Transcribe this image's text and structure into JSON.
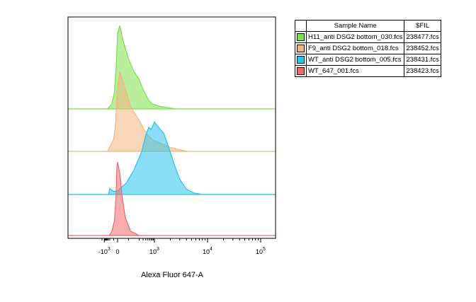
{
  "chart_data": {
    "type": "area",
    "xlabel": "Alexa Fluor 647-A",
    "x_scale": "biexponential",
    "x_ticks": [
      {
        "value": -1000,
        "base": "-10",
        "exp": "3"
      },
      {
        "value": 0,
        "base": "0",
        "exp": ""
      },
      {
        "value": 1000,
        "base": "10",
        "exp": "3"
      },
      {
        "value": 10000,
        "base": "10",
        "exp": "4"
      },
      {
        "value": 100000,
        "base": "10",
        "exp": "5"
      }
    ],
    "xlim": [
      -2000,
      200000
    ],
    "ylabel": "",
    "y_scale": "normalized to mode, offset per sample",
    "series": [
      {
        "name": "H11_anti DSG2 bottom_030.fcs",
        "fil": "238477.fcs",
        "color": "#7de04a",
        "x": [
          -400,
          -250,
          -150,
          -80,
          -30,
          0,
          20,
          50,
          100,
          150,
          200,
          280,
          400,
          550,
          800,
          1300,
          2500
        ],
        "y": [
          0,
          0.02,
          0.06,
          0.2,
          0.55,
          0.9,
          1.0,
          0.82,
          0.6,
          0.45,
          0.35,
          0.25,
          0.17,
          0.1,
          0.06,
          0.03,
          0
        ]
      },
      {
        "name": "F9_anti DSG2 bottom_018.fcs",
        "fil": "238452.fcs",
        "color": "#f2b47d",
        "x": [
          -400,
          -200,
          -100,
          -50,
          -10,
          20,
          60,
          120,
          200,
          350,
          500,
          700,
          1000,
          1400,
          2000,
          3000,
          4000
        ],
        "y": [
          0,
          0.05,
          0.15,
          0.35,
          0.75,
          0.98,
          0.82,
          0.55,
          0.38,
          0.26,
          0.2,
          0.16,
          0.13,
          0.09,
          0.05,
          0.02,
          0
        ]
      },
      {
        "name": "WT_anti DSG2 bottom_005.fcs",
        "fil": "238431.fcs",
        "color": "#29c3ec",
        "x": [
          -300,
          -200,
          -100,
          0,
          80,
          150,
          250,
          400,
          550,
          700,
          850,
          1000,
          1200,
          1500,
          1900,
          2400,
          3000,
          4000,
          5500,
          8000
        ],
        "y": [
          0,
          0.08,
          0.04,
          0.05,
          0.15,
          0.32,
          0.55,
          0.78,
          0.88,
          0.85,
          0.9,
          0.95,
          0.88,
          0.8,
          0.6,
          0.38,
          0.2,
          0.07,
          0.02,
          0
        ]
      },
      {
        "name": "WT_647_001.fcs",
        "fil": "238423.fcs",
        "color": "#f06a6a",
        "x": [
          -250,
          -150,
          -80,
          -40,
          -20,
          0,
          20,
          40,
          70,
          120,
          200
        ],
        "y": [
          0,
          0.05,
          0.2,
          0.55,
          0.9,
          1.0,
          0.85,
          0.55,
          0.25,
          0.06,
          0
        ]
      }
    ],
    "legend": {
      "placement": "right",
      "headers": [
        "Sample Name",
        "$FIL"
      ]
    }
  }
}
